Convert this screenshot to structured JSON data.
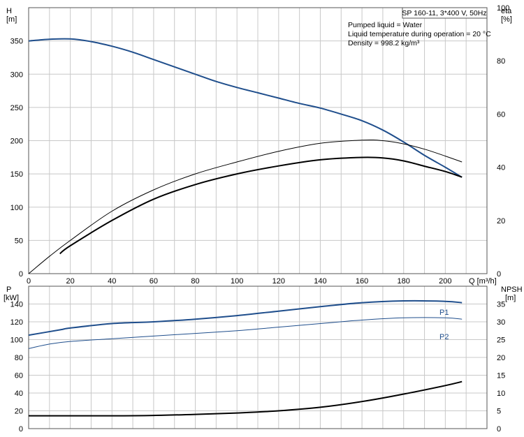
{
  "chart_data": [
    {
      "type": "line",
      "title": "SP 160-11, 3*400 V, 50Hz",
      "notes": [
        "Pumped liquid = Water",
        "Liquid temperature during operation = 20 °C",
        "Density = 998.2 kg/m³"
      ],
      "xlabel": "Q [m³/h]",
      "ylabel_left": [
        "H",
        "[m]"
      ],
      "ylabel_right": [
        "eta",
        "[%]"
      ],
      "xlim": [
        0,
        220
      ],
      "ylim_left": [
        0,
        400
      ],
      "ylim_right": [
        0,
        100
      ],
      "x_ticks": [
        0,
        20,
        40,
        60,
        80,
        100,
        120,
        140,
        160,
        180,
        200
      ],
      "y_ticks_left": [
        0,
        50,
        100,
        150,
        200,
        250,
        300,
        350
      ],
      "y_ticks_right": [
        0,
        20,
        40,
        60,
        80,
        100
      ],
      "grid": true,
      "series": [
        {
          "axis": "left",
          "color": "#1f4e8c",
          "width": 2,
          "x": [
            0,
            10,
            20,
            30,
            40,
            50,
            60,
            70,
            80,
            90,
            100,
            110,
            120,
            130,
            140,
            150,
            160,
            170,
            180,
            190,
            200,
            208
          ],
          "y": [
            350,
            352.5,
            353,
            349,
            342,
            333,
            322,
            311,
            300,
            289,
            280,
            272,
            264,
            256,
            249,
            240,
            230,
            216,
            198,
            178,
            160,
            145
          ]
        },
        {
          "axis": "right",
          "color": "#000000",
          "width": 1,
          "x": [
            0,
            10,
            20,
            40,
            60,
            80,
            100,
            120,
            140,
            160,
            170,
            180,
            190,
            200,
            208
          ],
          "y": [
            0,
            6.5,
            12.5,
            23.5,
            31.5,
            37.5,
            42,
            46,
            49,
            50.2,
            50,
            48.8,
            46.8,
            44.2,
            42
          ]
        },
        {
          "axis": "right",
          "color": "#000000",
          "width": 2,
          "x": [
            15,
            20,
            40,
            60,
            80,
            100,
            120,
            140,
            160,
            170,
            180,
            190,
            200,
            208
          ],
          "y": [
            7.5,
            10.5,
            20,
            28,
            33.5,
            37.5,
            40.5,
            42.8,
            43.7,
            43.5,
            42.4,
            40.4,
            38.4,
            36.3
          ]
        }
      ]
    },
    {
      "type": "line",
      "xlim": [
        0,
        220
      ],
      "ylabel_left": [
        "P",
        "[kW]"
      ],
      "ylabel_right": [
        "NPSH",
        "[m]"
      ],
      "ylim_left": [
        0,
        160
      ],
      "ylim_right": [
        0,
        40
      ],
      "y_ticks_left": [
        0,
        20,
        40,
        60,
        80,
        100,
        120,
        140
      ],
      "y_ticks_right": [
        0,
        5,
        10,
        15,
        20,
        25,
        30,
        35
      ],
      "grid": true,
      "series": [
        {
          "name": "P1",
          "axis": "left",
          "color": "#1f4e8c",
          "width": 2,
          "x": [
            0,
            15,
            20,
            40,
            60,
            80,
            100,
            120,
            140,
            160,
            180,
            200,
            208
          ],
          "y": [
            105,
            111,
            113,
            118,
            120,
            123,
            127,
            132,
            137,
            141.5,
            143.5,
            143,
            141.5
          ]
        },
        {
          "name": "P2",
          "axis": "left",
          "color": "#1f4e8c",
          "width": 1,
          "x": [
            0,
            10,
            20,
            40,
            60,
            80,
            100,
            120,
            140,
            160,
            180,
            200,
            208
          ],
          "y": [
            90,
            95,
            98,
            101,
            104,
            107,
            110,
            114,
            118,
            122,
            124.5,
            124.5,
            123
          ]
        },
        {
          "axis": "right",
          "color": "#000000",
          "width": 2,
          "x": [
            0,
            20,
            40,
            60,
            80,
            100,
            120,
            140,
            160,
            180,
            200,
            208
          ],
          "y": [
            3.6,
            3.6,
            3.6,
            3.7,
            4.0,
            4.4,
            5.0,
            6.0,
            7.6,
            9.7,
            12.1,
            13.2
          ]
        }
      ]
    }
  ]
}
